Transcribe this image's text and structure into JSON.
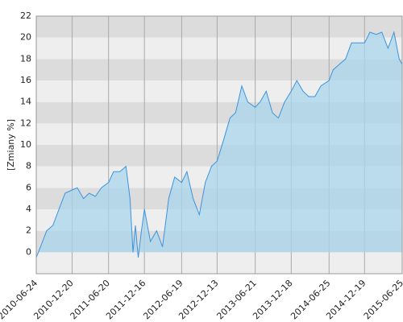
{
  "chart_data": {
    "type": "area",
    "y_label": "[Zmiany %]",
    "x": [
      "2010-06-24",
      "2010-07-15",
      "2010-08-15",
      "2010-09-15",
      "2010-10-15",
      "2010-11-15",
      "2010-12-20",
      "2011-01-15",
      "2011-02-15",
      "2011-03-15",
      "2011-04-15",
      "2011-05-15",
      "2011-06-20",
      "2011-07-15",
      "2011-08-15",
      "2011-09-15",
      "2011-10-05",
      "2011-10-20",
      "2011-11-01",
      "2011-11-15",
      "2011-12-01",
      "2011-12-16",
      "2012-01-15",
      "2012-02-15",
      "2012-03-15",
      "2012-04-15",
      "2012-05-15",
      "2012-06-19",
      "2012-07-15",
      "2012-08-15",
      "2012-09-15",
      "2012-10-15",
      "2012-11-15",
      "2012-12-13",
      "2013-01-15",
      "2013-02-15",
      "2013-03-15",
      "2013-04-15",
      "2013-05-15",
      "2013-06-21",
      "2013-07-15",
      "2013-08-15",
      "2013-09-15",
      "2013-10-15",
      "2013-11-15",
      "2013-12-18",
      "2014-01-15",
      "2014-02-15",
      "2014-03-15",
      "2014-04-15",
      "2014-05-15",
      "2014-06-25",
      "2014-07-15",
      "2014-08-15",
      "2014-09-15",
      "2014-10-15",
      "2014-11-15",
      "2014-12-19",
      "2015-01-15",
      "2015-02-15",
      "2015-03-15",
      "2015-04-15",
      "2015-05-15",
      "2015-06-10",
      "2015-06-25"
    ],
    "series": [
      {
        "name": "Zmiany",
        "color": "#3d93dd",
        "fill": "#a9d5ec",
        "values": [
          -0.5,
          0.5,
          2,
          2.5,
          4,
          5.5,
          5.8,
          6,
          5,
          5.5,
          5.2,
          6,
          6.5,
          7.5,
          7.5,
          8,
          5,
          0,
          2.5,
          -0.5,
          2,
          4,
          1,
          2,
          0.5,
          5,
          7,
          6.5,
          7.5,
          5,
          3.5,
          6.5,
          8,
          8.5,
          10.5,
          12.5,
          13,
          15.5,
          14,
          13.5,
          14,
          15,
          13,
          12.5,
          14,
          15,
          16,
          15,
          14.5,
          14.5,
          15.5,
          16,
          17,
          17.5,
          18,
          19.5,
          19.5,
          19.5,
          20.5,
          20.3,
          20.5,
          19,
          20.5,
          18,
          17.5
        ]
      }
    ],
    "xlim": [
      "2010-06-24",
      "2015-06-25"
    ],
    "xticks": [
      "2010-06-24",
      "2010-12-20",
      "2011-06-20",
      "2011-12-16",
      "2012-06-19",
      "2012-12-13",
      "2013-06-21",
      "2013-12-18",
      "2014-06-25",
      "2014-12-19",
      "2015-06-25"
    ],
    "ylim": [
      -2,
      22
    ],
    "yticks": [
      0,
      2,
      4,
      6,
      8,
      10,
      12,
      14,
      16,
      18,
      20,
      22
    ],
    "grid": true
  }
}
